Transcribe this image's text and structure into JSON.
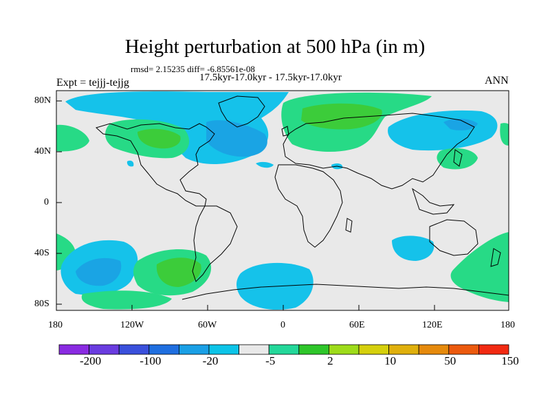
{
  "title": "Height perturbation at 500 hPa (in m)",
  "stats_line": "rmsd= 2.15235 diff= -6.85561e-08",
  "subtitle": "17.5kyr-17.0kyr - 17.5kyr-17.0kyr",
  "left_label": "Expt = tejjj-tejjg",
  "right_label": "ANN",
  "lat_ticks": [
    "80N",
    "40N",
    "0",
    "40S",
    "80S"
  ],
  "lon_ticks": [
    "180",
    "120W",
    "60W",
    "0",
    "60E",
    "120E",
    "180"
  ],
  "colorbar": {
    "labels": [
      "-200",
      "-100",
      "-20",
      "-5",
      "2",
      "10",
      "50",
      "150"
    ],
    "colors": [
      "#8a2be2",
      "#6a3ce0",
      "#3a50dc",
      "#1f6fe0",
      "#1aa0e6",
      "#0cc4e8",
      "#e9e9e9",
      "#23d89a",
      "#2ec62a",
      "#9edc1a",
      "#d6d00c",
      "#e0b00c",
      "#e68a0c",
      "#ec5a0e",
      "#f22a12"
    ]
  },
  "colors": {
    "ocean_background": "#e9e9e9",
    "light_blue": "#15c2ea",
    "mid_blue": "#1aa4e4",
    "light_green": "#27da86",
    "mid_green": "#3ccc3a",
    "coastline": "#000000"
  }
}
